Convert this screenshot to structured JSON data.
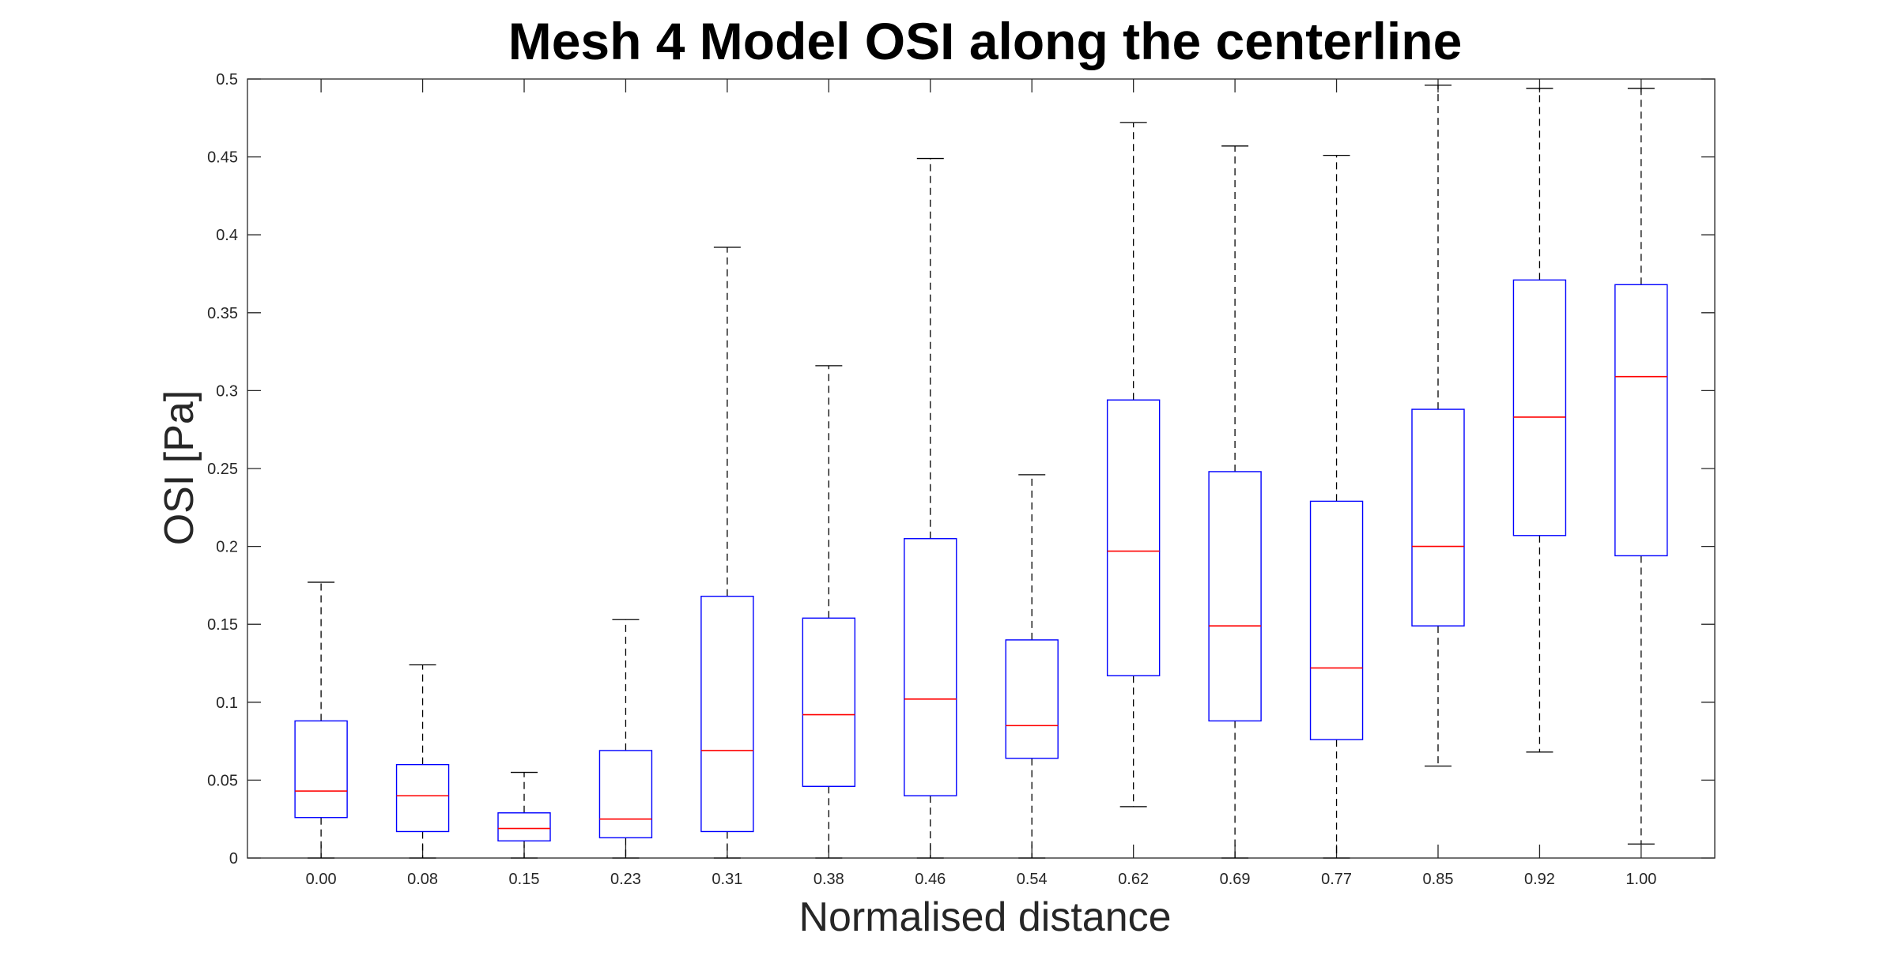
{
  "chart_data": {
    "type": "box",
    "title": "Mesh 4 Model OSI along the centerline",
    "xlabel": "Normalised distance",
    "ylabel": "OSI [Pa]",
    "ylim": [
      0,
      0.5
    ],
    "yticks": [
      "0",
      "0.05",
      "0.1",
      "0.15",
      "0.2",
      "0.25",
      "0.3",
      "0.35",
      "0.4",
      "0.45",
      "0.5"
    ],
    "categories": [
      "0.00",
      "0.08",
      "0.15",
      "0.23",
      "0.31",
      "0.38",
      "0.46",
      "0.54",
      "0.62",
      "0.69",
      "0.77",
      "0.85",
      "0.92",
      "1.00"
    ],
    "boxes": [
      {
        "min": 0.0,
        "q1": 0.026,
        "median": 0.043,
        "q3": 0.088,
        "max": 0.177
      },
      {
        "min": 0.0,
        "q1": 0.017,
        "median": 0.04,
        "q3": 0.06,
        "max": 0.124
      },
      {
        "min": 0.0,
        "q1": 0.011,
        "median": 0.019,
        "q3": 0.029,
        "max": 0.055
      },
      {
        "min": 0.0,
        "q1": 0.013,
        "median": 0.025,
        "q3": 0.069,
        "max": 0.153
      },
      {
        "min": 0.0,
        "q1": 0.017,
        "median": 0.069,
        "q3": 0.168,
        "max": 0.392
      },
      {
        "min": 0.0,
        "q1": 0.046,
        "median": 0.092,
        "q3": 0.154,
        "max": 0.316
      },
      {
        "min": 0.0,
        "q1": 0.04,
        "median": 0.102,
        "q3": 0.205,
        "max": 0.449
      },
      {
        "min": 0.0,
        "q1": 0.064,
        "median": 0.085,
        "q3": 0.14,
        "max": 0.246
      },
      {
        "min": 0.033,
        "q1": 0.117,
        "median": 0.197,
        "q3": 0.294,
        "max": 0.472
      },
      {
        "min": 0.0,
        "q1": 0.088,
        "median": 0.149,
        "q3": 0.248,
        "max": 0.457
      },
      {
        "min": 0.0,
        "q1": 0.076,
        "median": 0.122,
        "q3": 0.229,
        "max": 0.451
      },
      {
        "min": 0.059,
        "q1": 0.149,
        "median": 0.2,
        "q3": 0.288,
        "max": 0.496
      },
      {
        "min": 0.068,
        "q1": 0.207,
        "median": 0.283,
        "q3": 0.371,
        "max": 0.494
      },
      {
        "min": 0.009,
        "q1": 0.194,
        "median": 0.309,
        "q3": 0.368,
        "max": 0.494
      }
    ],
    "colors": {
      "box": "#0000ff",
      "median": "#ff0000",
      "whisker": "#000000",
      "axis": "#262626"
    },
    "grid": false,
    "legend": "none"
  }
}
